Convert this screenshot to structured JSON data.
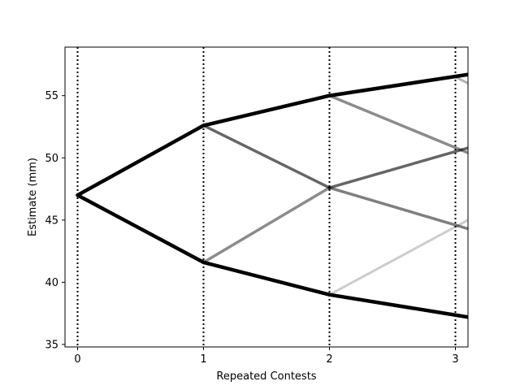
{
  "chart_data": {
    "type": "line",
    "title": "",
    "xlabel": "Repeated Contests",
    "ylabel": "Estimate (mm)",
    "xlim": [
      -0.1,
      3.1
    ],
    "ylim": [
      34.8,
      58.9
    ],
    "xticks": [
      0,
      1,
      2,
      3
    ],
    "yticks": [
      35,
      40,
      45,
      50,
      55
    ],
    "vertical_lines_at": [
      0,
      1,
      2,
      3
    ],
    "vertical_line_style": "dotted",
    "grid": false,
    "legend": "none",
    "line_color": "#000000",
    "segments": [
      {
        "from": [
          0,
          47.0
        ],
        "to": [
          1,
          52.6
        ],
        "opacity": 1.0,
        "width": 4.5
      },
      {
        "from": [
          0,
          47.0
        ],
        "to": [
          1,
          41.6
        ],
        "opacity": 1.0,
        "width": 4.5
      },
      {
        "from": [
          1,
          52.6
        ],
        "to": [
          2,
          55.0
        ],
        "opacity": 1.0,
        "width": 4.5
      },
      {
        "from": [
          1,
          52.6
        ],
        "to": [
          2,
          47.6
        ],
        "opacity": 0.6,
        "width": 3.5
      },
      {
        "from": [
          1,
          41.6
        ],
        "to": [
          2,
          47.6
        ],
        "opacity": 0.45,
        "width": 3.5
      },
      {
        "from": [
          1,
          41.6
        ],
        "to": [
          2,
          39.0
        ],
        "opacity": 1.0,
        "width": 4.5
      },
      {
        "from": [
          2,
          55.0
        ],
        "to": [
          3.1,
          56.7
        ],
        "opacity": 1.0,
        "width": 4.5
      },
      {
        "from": [
          2,
          55.0
        ],
        "to": [
          3.1,
          50.4
        ],
        "opacity": 0.45,
        "width": 3.5
      },
      {
        "from": [
          2,
          47.6
        ],
        "to": [
          3.1,
          50.8
        ],
        "opacity": 0.6,
        "width": 3.5
      },
      {
        "from": [
          2,
          47.6
        ],
        "to": [
          3.1,
          44.3
        ],
        "opacity": 0.5,
        "width": 3.5
      },
      {
        "from": [
          2,
          39.0
        ],
        "to": [
          3.1,
          45.0
        ],
        "opacity": 0.2,
        "width": 3.0
      },
      {
        "from": [
          2,
          39.0
        ],
        "to": [
          3.1,
          37.2
        ],
        "opacity": 1.0,
        "width": 4.5
      },
      {
        "from": [
          3,
          56.5
        ],
        "to": [
          3.1,
          56.0
        ],
        "opacity": 0.3,
        "width": 3.0
      }
    ]
  }
}
